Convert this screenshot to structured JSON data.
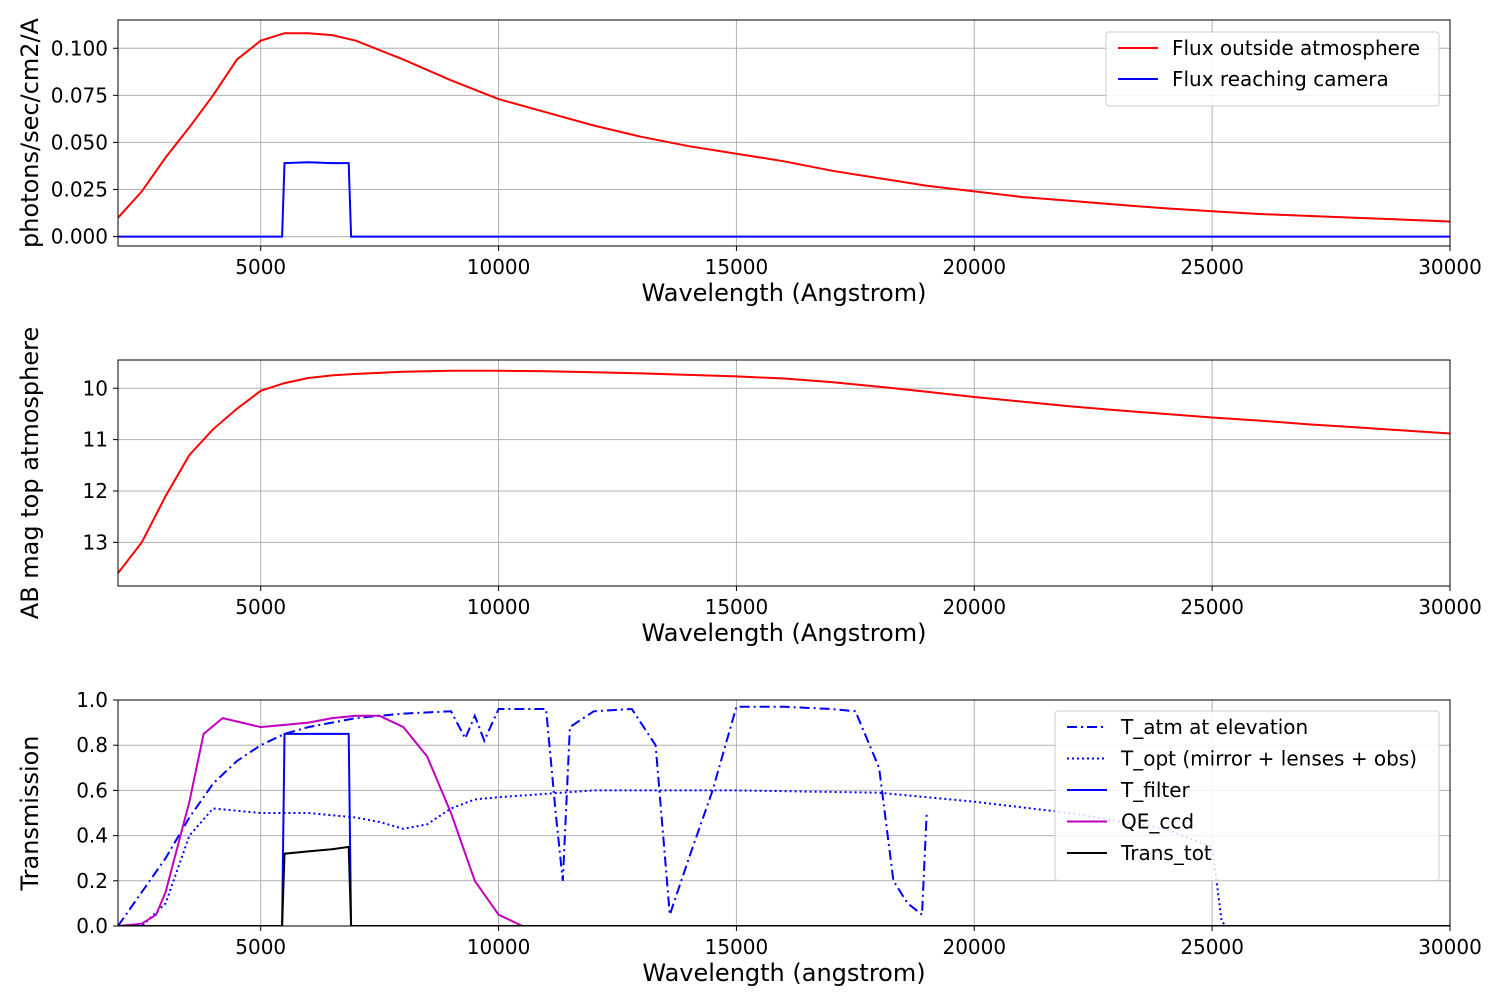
{
  "chart_data": [
    {
      "type": "line",
      "xlabel": "Wavelength (Angstrom)",
      "ylabel": "photons/sec/cm2/A",
      "xlim": [
        2000,
        30000
      ],
      "ylim": [
        -0.005,
        0.115
      ],
      "xticks": [
        "5000",
        "10000",
        "15000",
        "20000",
        "25000",
        "30000"
      ],
      "yticks": [
        "0.000",
        "0.025",
        "0.050",
        "0.075",
        "0.100"
      ],
      "grid": true,
      "legend_position": "top-right",
      "series": [
        {
          "name": "Flux outside atmosphere",
          "color": "#ff0000",
          "style": "solid",
          "x": [
            2000,
            2500,
            3000,
            3500,
            4000,
            4500,
            5000,
            5500,
            6000,
            6500,
            7000,
            8000,
            9000,
            10000,
            11000,
            12000,
            13000,
            14000,
            15000,
            16000,
            17000,
            18000,
            19000,
            20000,
            21000,
            22000,
            23000,
            24000,
            25000,
            26000,
            27000,
            28000,
            29000,
            30000
          ],
          "y": [
            0.01,
            0.024,
            0.042,
            0.058,
            0.075,
            0.094,
            0.104,
            0.108,
            0.108,
            0.107,
            0.104,
            0.094,
            0.083,
            0.073,
            0.066,
            0.059,
            0.053,
            0.048,
            0.044,
            0.04,
            0.035,
            0.031,
            0.027,
            0.024,
            0.021,
            0.019,
            0.017,
            0.015,
            0.0135,
            0.012,
            0.011,
            0.01,
            0.009,
            0.008
          ]
        },
        {
          "name": "Flux reaching camera",
          "color": "#0000ff",
          "style": "solid",
          "x": [
            2000,
            5450,
            5500,
            6000,
            6500,
            6850,
            6900,
            30000
          ],
          "y": [
            0,
            0,
            0.039,
            0.0395,
            0.039,
            0.039,
            0,
            0
          ]
        }
      ]
    },
    {
      "type": "line",
      "xlabel": "Wavelength (Angstrom)",
      "ylabel": "AB mag top atmosphere",
      "xlim": [
        2000,
        30000
      ],
      "ylim": [
        13.85,
        9.45
      ],
      "xticks": [
        "5000",
        "10000",
        "15000",
        "20000",
        "25000",
        "30000"
      ],
      "yticks": [
        "10",
        "11",
        "12",
        "13"
      ],
      "grid": true,
      "series": [
        {
          "color": "#ff0000",
          "style": "solid",
          "x": [
            2000,
            2500,
            3000,
            3500,
            4000,
            4500,
            5000,
            5500,
            6000,
            6500,
            7000,
            8000,
            9000,
            10000,
            11000,
            12000,
            13000,
            14000,
            15000,
            16000,
            17000,
            18000,
            19000,
            20000,
            21000,
            22000,
            23000,
            24000,
            25000,
            26000,
            27000,
            28000,
            29000,
            30000
          ],
          "y": [
            13.6,
            13.0,
            12.1,
            11.3,
            10.8,
            10.4,
            10.05,
            9.9,
            9.8,
            9.75,
            9.72,
            9.68,
            9.66,
            9.66,
            9.67,
            9.69,
            9.71,
            9.74,
            9.77,
            9.81,
            9.88,
            9.97,
            10.07,
            10.17,
            10.26,
            10.35,
            10.43,
            10.5,
            10.57,
            10.63,
            10.7,
            10.76,
            10.82,
            10.88
          ]
        }
      ]
    },
    {
      "type": "line",
      "xlabel": "Wavelength (angstrom)",
      "ylabel": "Transmission",
      "xlim": [
        2000,
        30000
      ],
      "ylim": [
        0,
        1
      ],
      "xticks": [
        "5000",
        "10000",
        "15000",
        "20000",
        "25000",
        "30000"
      ],
      "yticks": [
        "0.0",
        "0.2",
        "0.4",
        "0.6",
        "0.8",
        "1.0"
      ],
      "grid": true,
      "legend_position": "top-right",
      "series": [
        {
          "name": "T_atm at elevation",
          "color": "#0000ff",
          "style": "dashdot",
          "x": [
            2000,
            2500,
            3000,
            3500,
            4000,
            4500,
            5000,
            5500,
            6000,
            7000,
            8000,
            9000,
            9300,
            9500,
            9700,
            10000,
            11000,
            11200,
            11350,
            11500,
            12000,
            12800,
            13300,
            13600,
            14000,
            14500,
            15000,
            16000,
            17000,
            17500,
            18000,
            18300,
            18600,
            18900,
            19000
          ],
          "y": [
            0.0,
            0.15,
            0.3,
            0.48,
            0.63,
            0.73,
            0.8,
            0.85,
            0.88,
            0.92,
            0.94,
            0.95,
            0.83,
            0.93,
            0.82,
            0.96,
            0.96,
            0.5,
            0.2,
            0.88,
            0.95,
            0.96,
            0.8,
            0.05,
            0.3,
            0.6,
            0.97,
            0.97,
            0.96,
            0.95,
            0.7,
            0.2,
            0.1,
            0.05,
            0.5
          ]
        },
        {
          "name": "T_opt (mirror + lenses + obs)",
          "color": "#0000ff",
          "style": "dotted",
          "x": [
            2000,
            2500,
            3000,
            3500,
            4000,
            5000,
            6000,
            7000,
            7500,
            8000,
            8500,
            9000,
            9500,
            10000,
            12000,
            15000,
            18000,
            20000,
            22000,
            24000,
            25000,
            25200,
            25300,
            30000
          ],
          "y": [
            0.0,
            0.0,
            0.1,
            0.4,
            0.52,
            0.5,
            0.5,
            0.48,
            0.46,
            0.43,
            0.45,
            0.52,
            0.56,
            0.57,
            0.6,
            0.6,
            0.59,
            0.55,
            0.5,
            0.43,
            0.35,
            0.02,
            0.0,
            0.0
          ]
        },
        {
          "name": "T_filter",
          "color": "#0000ff",
          "style": "solid",
          "x": [
            2000,
            5450,
            5500,
            6850,
            6900,
            30000
          ],
          "y": [
            0,
            0,
            0.85,
            0.85,
            0,
            0
          ]
        },
        {
          "name": "QE_ccd",
          "color": "#bf00bf",
          "style": "solid",
          "x": [
            2000,
            2500,
            2800,
            3000,
            3500,
            3800,
            4200,
            4600,
            5000,
            5500,
            6000,
            6500,
            7000,
            7500,
            8000,
            8500,
            9000,
            9500,
            10000,
            10500,
            30000
          ],
          "y": [
            0.0,
            0.01,
            0.05,
            0.15,
            0.55,
            0.85,
            0.92,
            0.9,
            0.88,
            0.89,
            0.9,
            0.92,
            0.93,
            0.93,
            0.88,
            0.75,
            0.5,
            0.2,
            0.05,
            0.0,
            0.0
          ]
        },
        {
          "name": "Trans_tot",
          "color": "#000000",
          "style": "solid",
          "x": [
            2000,
            5450,
            5500,
            6000,
            6500,
            6850,
            6900,
            30000
          ],
          "y": [
            0,
            0,
            0.32,
            0.33,
            0.34,
            0.35,
            0,
            0
          ]
        }
      ]
    }
  ]
}
